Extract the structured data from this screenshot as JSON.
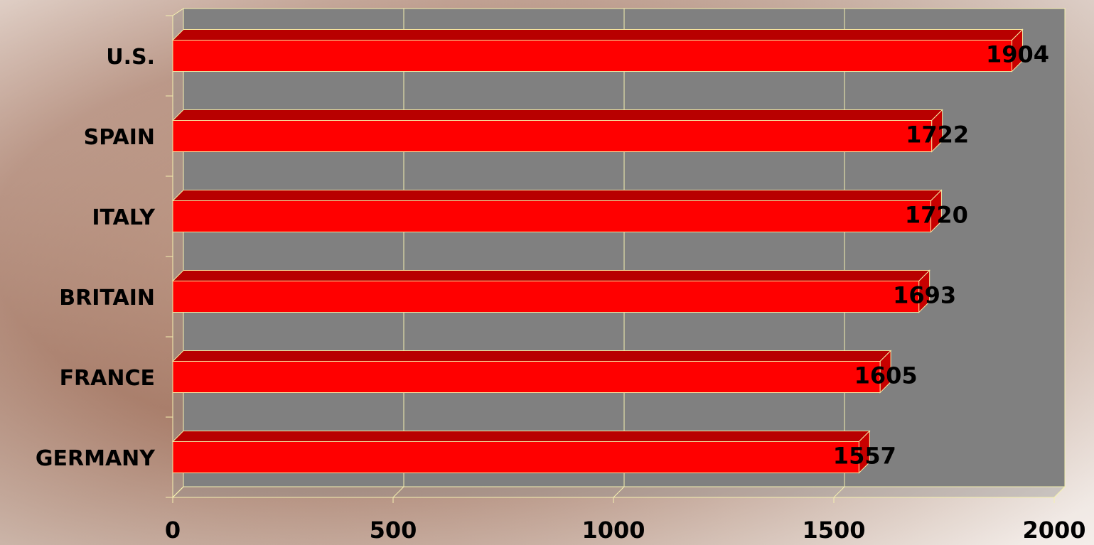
{
  "chart_data": {
    "type": "bar",
    "orientation": "horizontal",
    "categories": [
      "U.S.",
      "SPAIN",
      "ITALY",
      "BRITAIN",
      "FRANCE",
      "GERMANY"
    ],
    "values": [
      1904,
      1722,
      1720,
      1693,
      1605,
      1557
    ],
    "color": "#ff0000",
    "xlim": [
      0,
      2000
    ],
    "xticks": [
      0,
      500,
      1000,
      1500,
      2000
    ],
    "grid": true
  }
}
